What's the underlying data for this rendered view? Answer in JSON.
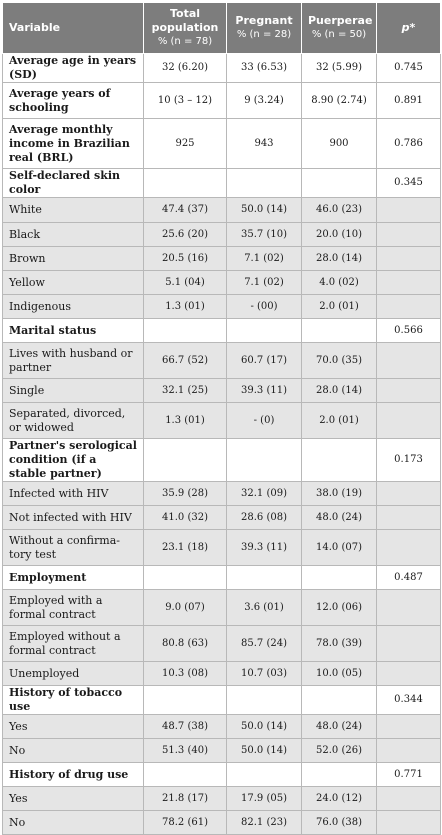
{
  "header": {
    "variable": "Variable",
    "total_line1": "Total",
    "total_line2": "population",
    "total_sub": "% (n = 78)",
    "pregnant": "Pregnant",
    "pregnant_sub": "% (n = 28)",
    "puerperae": "Puerperae",
    "puerperae_sub": "% (n = 50)",
    "p": "p*"
  },
  "rows": [
    {
      "kind": "main",
      "label": "Average age in years (SD)",
      "total": "32 (6.20)",
      "pregnant": "33 (6.53)",
      "puerperae": "32 (5.99)",
      "p": "0.745",
      "h": 24
    },
    {
      "kind": "main",
      "label": "Average years of schooling",
      "total": "10 (3 – 12)",
      "pregnant": "9 (3.24)",
      "puerperae": "8.90 (2.74)",
      "p": "0.891",
      "h": 36
    },
    {
      "kind": "main",
      "label": "Average monthly income in Brazilian real (BRL)",
      "total": "925",
      "pregnant": "943",
      "puerperae": "900",
      "p": "0.786",
      "h": 50
    },
    {
      "kind": "sect",
      "label": "Self-declared skin color",
      "p": "0.345",
      "h": 24
    },
    {
      "kind": "cat",
      "label": "White",
      "total": "47.4 (37)",
      "pregnant": "50.0 (14)",
      "puerperae": "46.0 (23)",
      "h": 25
    },
    {
      "kind": "cat",
      "label": "Black",
      "total": "25.6 (20)",
      "pregnant": "35.7 (10)",
      "puerperae": "20.0 (10)",
      "h": 24
    },
    {
      "kind": "cat",
      "label": "Brown",
      "total": "20.5 (16)",
      "pregnant": "7.1 (02)",
      "puerperae": "28.0 (14)",
      "h": 24
    },
    {
      "kind": "cat",
      "label": "Yellow",
      "total": "5.1 (04)",
      "pregnant": "7.1 (02)",
      "puerperae": "4.0 (02)",
      "h": 24
    },
    {
      "kind": "cat",
      "label": "Indigenous",
      "total": "1.3 (01)",
      "pregnant": "- (00)",
      "puerperae": "2.0 (01)",
      "h": 24
    },
    {
      "kind": "sect",
      "label": "Marital status",
      "p": "0.566",
      "h": 24
    },
    {
      "kind": "cat",
      "label": "Lives with husband or partner",
      "total": "66.7 (52)",
      "pregnant": "60.7 (17)",
      "puerperae": "70.0 (35)",
      "h": 36
    },
    {
      "kind": "cat",
      "label": "Single",
      "total": "32.1 (25)",
      "pregnant": "39.3 (11)",
      "puerperae": "28.0 (14)",
      "h": 24
    },
    {
      "kind": "cat",
      "label": "Separated, divorced, or widowed",
      "total": "1.3 (01)",
      "pregnant": "- (0)",
      "puerperae": "2.0 (01)",
      "h": 36
    },
    {
      "kind": "sect",
      "label": "Partner's serological condition (if a stable partner)",
      "p": "0.173",
      "h": 24
    },
    {
      "kind": "cat",
      "label": "Infected with HIV",
      "total": "35.9 (28)",
      "pregnant": "32.1 (09)",
      "puerperae": "38.0 (19)",
      "h": 24
    },
    {
      "kind": "cat",
      "label": "Not infected with HIV",
      "total": "41.0 (32)",
      "pregnant": "28.6 (08)",
      "puerperae": "48.0 (24)",
      "h": 24
    },
    {
      "kind": "cat",
      "label": "Without a confirma-tory test",
      "total": "23.1 (18)",
      "pregnant": "39.3 (11)",
      "puerperae": "14.0 (07)",
      "h": 36
    },
    {
      "kind": "sect",
      "label": "Employment",
      "p": "0.487",
      "h": 24
    },
    {
      "kind": "cat",
      "label": "Employed with a formal contract",
      "total": "9.0 (07)",
      "pregnant": "3.6 (01)",
      "puerperae": "12.0 (06)",
      "h": 36
    },
    {
      "kind": "cat",
      "label": "Employed without a formal contract",
      "total": "80.8 (63)",
      "pregnant": "85.7 (24)",
      "puerperae": "78.0 (39)",
      "h": 36
    },
    {
      "kind": "cat",
      "label": "Unemployed",
      "total": "10.3 (08)",
      "pregnant": "10.7 (03)",
      "puerperae": "10.0 (05)",
      "h": 24
    },
    {
      "kind": "sect",
      "label": "History of tobacco use",
      "p": "0.344",
      "h": 24
    },
    {
      "kind": "cat",
      "label": "Yes",
      "total": "48.7 (38)",
      "pregnant": "50.0 (14)",
      "puerperae": "48.0 (24)",
      "h": 24
    },
    {
      "kind": "cat",
      "label": "No",
      "total": "51.3 (40)",
      "pregnant": "50.0 (14)",
      "puerperae": "52.0 (26)",
      "h": 24
    },
    {
      "kind": "sect",
      "label": "History of drug use",
      "p": "0.771",
      "h": 24
    },
    {
      "kind": "cat",
      "label": "Yes",
      "total": "21.8 (17)",
      "pregnant": "17.9 (05)",
      "puerperae": "24.0 (12)",
      "h": 24
    },
    {
      "kind": "cat",
      "label": "No",
      "total": "78.2 (61)",
      "pregnant": "82.1 (23)",
      "puerperae": "76.0 (38)",
      "h": 24
    }
  ]
}
